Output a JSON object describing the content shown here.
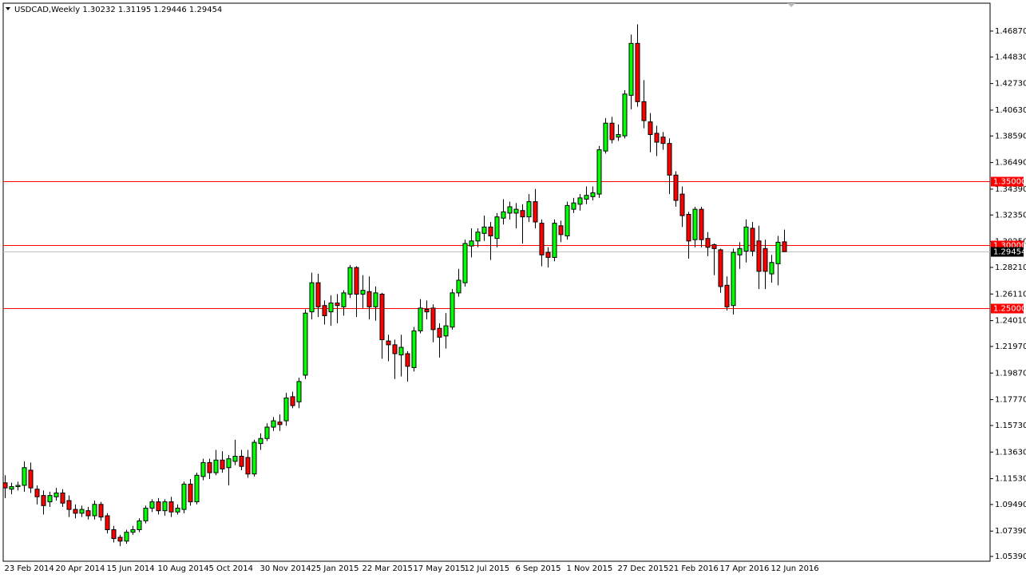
{
  "chart_data": {
    "type": "candlestick",
    "title": "USDCAD,Weekly  1.30232 1.31195 1.29446 1.29454",
    "categories": [
      "23 Feb 2014",
      null,
      null,
      null,
      null,
      null,
      null,
      null,
      "20 Apr 2014",
      null,
      null,
      null,
      null,
      null,
      null,
      null,
      "15 Jun 2014",
      null,
      null,
      null,
      null,
      null,
      null,
      null,
      "10 Aug 2014",
      null,
      null,
      null,
      null,
      null,
      null,
      null,
      "5 Oct 2014",
      null,
      null,
      null,
      null,
      null,
      null,
      null,
      "30 Nov 2014",
      null,
      null,
      null,
      null,
      null,
      null,
      null,
      "25 Jan 2015",
      null,
      null,
      null,
      null,
      null,
      null,
      null,
      "22 Mar 2015",
      null,
      null,
      null,
      null,
      null,
      null,
      null,
      "17 May 2015",
      null,
      null,
      null,
      null,
      null,
      null,
      null,
      "12 Jul 2015",
      null,
      null,
      null,
      null,
      null,
      null,
      null,
      "6 Sep 2015",
      null,
      null,
      null,
      null,
      null,
      null,
      null,
      "1 Nov 2015",
      null,
      null,
      null,
      null,
      null,
      null,
      null,
      "27 Dec 2015",
      null,
      null,
      null,
      null,
      null,
      null,
      null,
      "21 Feb 2016",
      null,
      null,
      null,
      null,
      null,
      null,
      null,
      "17 Apr 2016",
      null,
      null,
      null,
      null,
      null,
      null,
      null,
      "12 Jun 2016",
      null,
      null
    ],
    "open": [
      1.112,
      1.107,
      1.109,
      1.11,
      1.122,
      1.107,
      1.102,
      1.097,
      1.101,
      1.104,
      1.098,
      1.091,
      1.088,
      1.09,
      1.086,
      1.095,
      1.086,
      1.075,
      1.069,
      1.066,
      1.073,
      1.075,
      1.082,
      1.092,
      1.097,
      1.09,
      1.097,
      1.089,
      1.091,
      1.111,
      1.097,
      1.117,
      1.128,
      1.12,
      1.13,
      1.124,
      1.129,
      1.133,
      1.132,
      1.119,
      1.143,
      1.147,
      1.156,
      1.16,
      1.161,
      1.18,
      1.176,
      1.197,
      1.247,
      1.27,
      1.252,
      1.247,
      1.254,
      1.251,
      1.261,
      1.282,
      1.261,
      1.263,
      1.251,
      1.261,
      1.224,
      1.221,
      1.213,
      1.214,
      1.203,
      1.232,
      1.249,
      1.25,
      1.234,
      1.228,
      1.235,
      1.262,
      1.27,
      1.299,
      1.303,
      1.309,
      1.314,
      1.305,
      1.321,
      1.325,
      1.325,
      1.327,
      1.322,
      1.334,
      1.317,
      1.294,
      1.29,
      1.315,
      1.307,
      1.328,
      1.332,
      1.336,
      1.338,
      1.34,
      1.374,
      1.396,
      1.385,
      1.386,
      1.418,
      1.459,
      1.413,
      1.397,
      1.388,
      1.385,
      1.38,
      1.355,
      1.34,
      1.324,
      1.304,
      1.328,
      1.305,
      1.3,
      1.296,
      1.268,
      1.252,
      1.292,
      1.295,
      1.313,
      1.303,
      1.297,
      1.277,
      1.285,
      1.30232
    ],
    "high": [
      1.118,
      1.112,
      1.113,
      1.129,
      1.128,
      1.11,
      1.106,
      1.105,
      1.108,
      1.107,
      1.102,
      1.095,
      1.094,
      1.093,
      1.098,
      1.097,
      1.088,
      1.078,
      1.071,
      1.075,
      1.078,
      1.084,
      1.094,
      1.099,
      1.1,
      1.099,
      1.101,
      1.095,
      1.113,
      1.115,
      1.12,
      1.131,
      1.131,
      1.138,
      1.137,
      1.134,
      1.146,
      1.138,
      1.138,
      1.146,
      1.151,
      1.159,
      1.164,
      1.166,
      1.183,
      1.184,
      1.195,
      1.249,
      1.278,
      1.277,
      1.256,
      1.26,
      1.261,
      1.264,
      1.284,
      1.283,
      1.276,
      1.275,
      1.267,
      1.262,
      1.229,
      1.225,
      1.229,
      1.216,
      1.235,
      1.257,
      1.256,
      1.253,
      1.238,
      1.246,
      1.265,
      1.281,
      1.304,
      1.313,
      1.313,
      1.323,
      1.318,
      1.325,
      1.336,
      1.334,
      1.333,
      1.332,
      1.34,
      1.344,
      1.32,
      1.298,
      1.32,
      1.319,
      1.334,
      1.337,
      1.34,
      1.346,
      1.346,
      1.378,
      1.4,
      1.401,
      1.395,
      1.422,
      1.466,
      1.474,
      1.43,
      1.404,
      1.394,
      1.389,
      1.384,
      1.358,
      1.346,
      1.326,
      1.33,
      1.33,
      1.31,
      1.301,
      1.297,
      1.275,
      1.297,
      1.302,
      1.32,
      1.318,
      1.315,
      1.304,
      1.292,
      1.307,
      1.31195
    ],
    "low": [
      1.1,
      1.103,
      1.106,
      1.105,
      1.104,
      1.095,
      1.087,
      1.093,
      1.098,
      1.093,
      1.085,
      1.084,
      1.085,
      1.083,
      1.083,
      1.082,
      1.072,
      1.065,
      1.062,
      1.064,
      1.071,
      1.073,
      1.08,
      1.089,
      1.087,
      1.086,
      1.085,
      1.087,
      1.088,
      1.094,
      1.095,
      1.114,
      1.115,
      1.118,
      1.12,
      1.11,
      1.126,
      1.122,
      1.116,
      1.117,
      1.138,
      1.145,
      1.153,
      1.153,
      1.157,
      1.171,
      1.171,
      1.194,
      1.241,
      1.243,
      1.237,
      1.236,
      1.238,
      1.244,
      1.258,
      1.243,
      1.25,
      1.241,
      1.24,
      1.21,
      1.208,
      1.194,
      1.196,
      1.192,
      1.2,
      1.23,
      1.241,
      1.223,
      1.211,
      1.218,
      1.233,
      1.259,
      1.267,
      1.29,
      1.298,
      1.303,
      1.288,
      1.298,
      1.316,
      1.32,
      1.313,
      1.301,
      1.318,
      1.313,
      1.283,
      1.282,
      1.287,
      1.302,
      1.304,
      1.325,
      1.327,
      1.332,
      1.335,
      1.337,
      1.372,
      1.38,
      1.382,
      1.384,
      1.407,
      1.409,
      1.392,
      1.373,
      1.37,
      1.375,
      1.34,
      1.33,
      1.314,
      1.289,
      1.298,
      1.298,
      1.291,
      1.276,
      1.262,
      1.248,
      1.245,
      1.281,
      1.286,
      1.291,
      1.265,
      1.265,
      1.27,
      1.268,
      1.29446
    ],
    "close": [
      1.108,
      1.109,
      1.11,
      1.124,
      1.108,
      1.101,
      1.094,
      1.102,
      1.104,
      1.096,
      1.091,
      1.088,
      1.091,
      1.086,
      1.095,
      1.085,
      1.075,
      1.068,
      1.066,
      1.073,
      1.075,
      1.082,
      1.092,
      1.097,
      1.09,
      1.097,
      1.089,
      1.092,
      1.111,
      1.097,
      1.118,
      1.128,
      1.12,
      1.13,
      1.123,
      1.131,
      1.133,
      1.125,
      1.119,
      1.144,
      1.147,
      1.156,
      1.161,
      1.158,
      1.179,
      1.173,
      1.192,
      1.246,
      1.27,
      1.251,
      1.244,
      1.254,
      1.252,
      1.262,
      1.282,
      1.261,
      1.264,
      1.251,
      1.262,
      1.225,
      1.221,
      1.214,
      1.219,
      1.204,
      1.232,
      1.25,
      1.247,
      1.233,
      1.227,
      1.236,
      1.262,
      1.272,
      1.301,
      1.303,
      1.31,
      1.314,
      1.307,
      1.322,
      1.326,
      1.33,
      1.328,
      1.322,
      1.334,
      1.318,
      1.292,
      1.29,
      1.317,
      1.308,
      1.331,
      1.333,
      1.337,
      1.339,
      1.341,
      1.375,
      1.396,
      1.383,
      1.387,
      1.419,
      1.459,
      1.413,
      1.398,
      1.387,
      1.381,
      1.38,
      1.355,
      1.335,
      1.323,
      1.303,
      1.328,
      1.304,
      1.298,
      1.297,
      1.267,
      1.251,
      1.294,
      1.297,
      1.314,
      1.295,
      1.279,
      1.279,
      1.286,
      1.302,
      1.29454
    ],
    "up_color": "#00ff00",
    "down_color": "#ff0000",
    "ylim": [
      1.0501,
      1.4901
    ],
    "yticks": [
      {
        "value": 1.4687,
        "label": "1.46870"
      },
      {
        "value": 1.4483,
        "label": "1.44830"
      },
      {
        "value": 1.4273,
        "label": "1.42730"
      },
      {
        "value": 1.4063,
        "label": "1.40630"
      },
      {
        "value": 1.3859,
        "label": "1.38590"
      },
      {
        "value": 1.3649,
        "label": "1.36490"
      },
      {
        "value": 1.3439,
        "label": "1.34390"
      },
      {
        "value": 1.3235,
        "label": "1.32350"
      },
      {
        "value": 1.3025,
        "label": "1.30250"
      },
      {
        "value": 1.2821,
        "label": "1.28210"
      },
      {
        "value": 1.2611,
        "label": "1.26110"
      },
      {
        "value": 1.2401,
        "label": "1.24010"
      },
      {
        "value": 1.2197,
        "label": "1.21970"
      },
      {
        "value": 1.1987,
        "label": "1.19870"
      },
      {
        "value": 1.1777,
        "label": "1.17770"
      },
      {
        "value": 1.1573,
        "label": "1.15730"
      },
      {
        "value": 1.1363,
        "label": "1.13630"
      },
      {
        "value": 1.1153,
        "label": "1.11530"
      },
      {
        "value": 1.0949,
        "label": "1.09490"
      },
      {
        "value": 1.0739,
        "label": "1.07390"
      },
      {
        "value": 1.0539,
        "label": "1.05390"
      }
    ],
    "levels": [
      {
        "value": 1.35,
        "label": "1.35000",
        "color": "#ff0000"
      },
      {
        "value": 1.3,
        "label": "1.30000",
        "color": "#ff0000"
      },
      {
        "value": 1.25,
        "label": "1.25000",
        "color": "#ff0000"
      }
    ],
    "current_price": {
      "value": 1.29454,
      "label": "1.29454",
      "color": "#c0c0c0"
    }
  }
}
